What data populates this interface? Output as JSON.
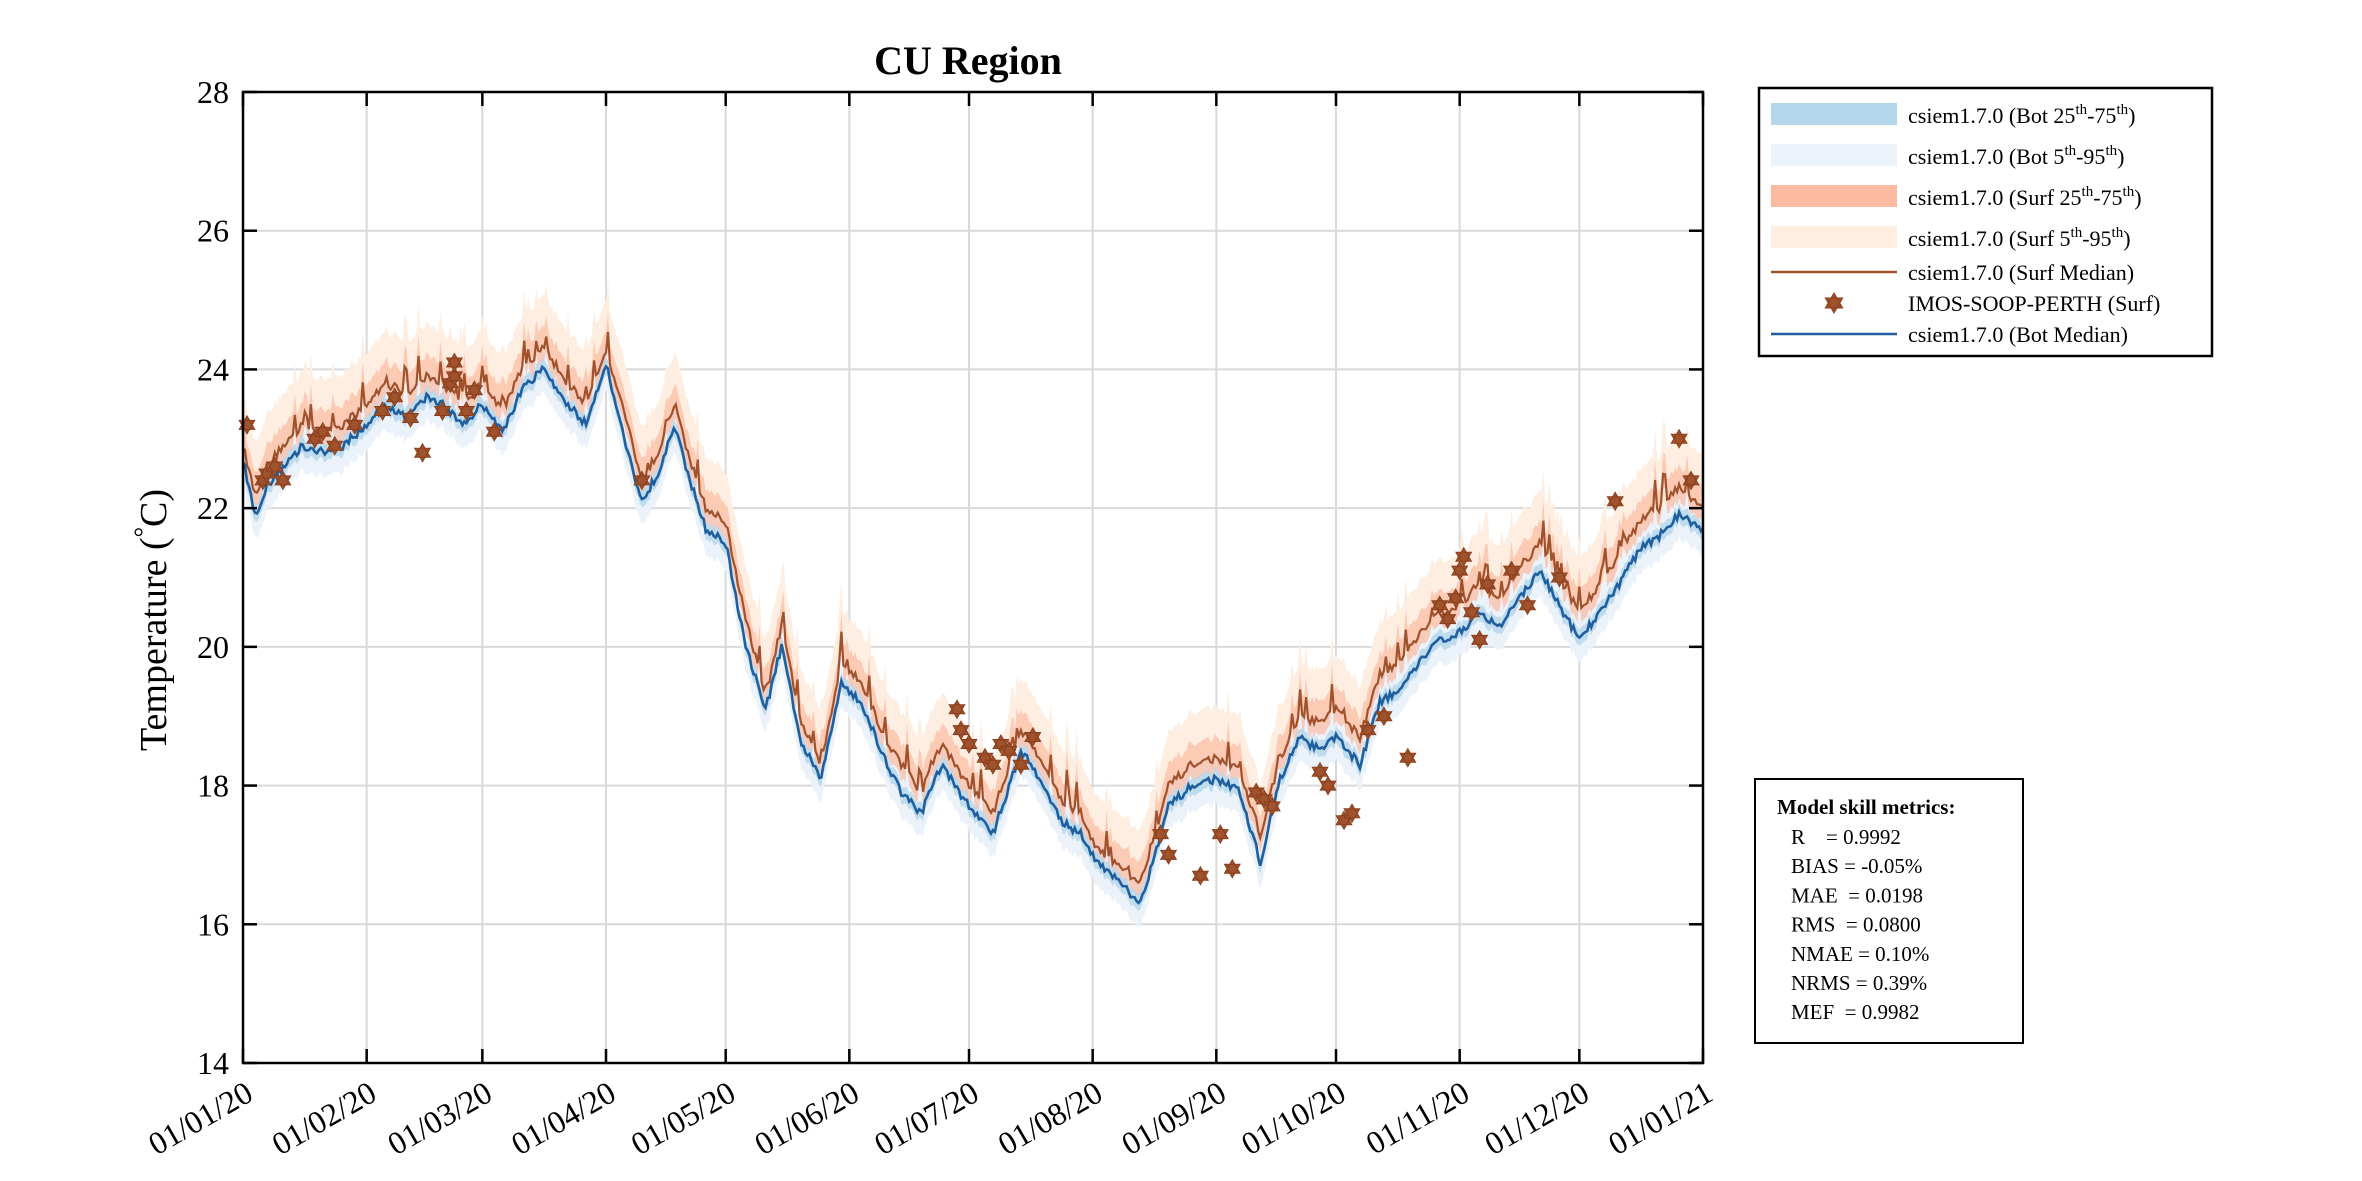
{
  "chart_data": {
    "type": "line",
    "title": "CU Region",
    "xlabel": "",
    "ylabel": "Temperature (",
    "ylabel_degree": "°",
    "ylabel_unit": "C)",
    "ylim": [
      14,
      28
    ],
    "yticks": [
      14,
      16,
      18,
      20,
      22,
      24,
      26,
      28
    ],
    "xlim_days": [
      0,
      366
    ],
    "xticks": [
      {
        "label": "01/01/20",
        "day": 0
      },
      {
        "label": "01/02/20",
        "day": 31
      },
      {
        "label": "01/03/20",
        "day": 60
      },
      {
        "label": "01/04/20",
        "day": 91
      },
      {
        "label": "01/05/20",
        "day": 121
      },
      {
        "label": "01/06/20",
        "day": 152
      },
      {
        "label": "01/07/20",
        "day": 182
      },
      {
        "label": "01/08/20",
        "day": 213
      },
      {
        "label": "01/09/20",
        "day": 244
      },
      {
        "label": "01/10/20",
        "day": 274
      },
      {
        "label": "01/11/20",
        "day": 305
      },
      {
        "label": "01/12/20",
        "day": 335
      },
      {
        "label": "01/01/21",
        "day": 366
      }
    ],
    "grid": true,
    "median_days": [
      0,
      3,
      6,
      10,
      15,
      20,
      25,
      31,
      36,
      41,
      46,
      50,
      55,
      60,
      65,
      70,
      75,
      80,
      86,
      91,
      96,
      100,
      104,
      108,
      112,
      116,
      121,
      126,
      131,
      135,
      140,
      145,
      150,
      155,
      160,
      165,
      170,
      175,
      182,
      188,
      195,
      200,
      205,
      210,
      213,
      218,
      225,
      232,
      238,
      244,
      250,
      255,
      260,
      265,
      270,
      274,
      280,
      285,
      290,
      295,
      300,
      305,
      310,
      315,
      320,
      325,
      330,
      335,
      340,
      345,
      350,
      355,
      360,
      366
    ],
    "bot_median": [
      22.7,
      21.9,
      22.3,
      22.6,
      22.9,
      22.8,
      22.9,
      23.2,
      23.5,
      23.3,
      23.6,
      23.5,
      23.2,
      23.5,
      23.1,
      23.7,
      24.0,
      23.6,
      23.2,
      24.1,
      22.9,
      22.1,
      22.5,
      23.2,
      22.4,
      21.7,
      21.5,
      20.0,
      19.1,
      20.0,
      18.6,
      18.1,
      19.5,
      19.2,
      18.5,
      17.9,
      17.6,
      18.3,
      17.7,
      17.3,
      18.5,
      18.1,
      17.5,
      17.3,
      17.0,
      16.7,
      16.3,
      17.7,
      18.0,
      18.1,
      17.9,
      16.9,
      18.1,
      18.7,
      18.5,
      18.7,
      18.3,
      19.2,
      19.4,
      19.8,
      20.1,
      20.2,
      20.5,
      20.3,
      20.7,
      21.1,
      20.6,
      20.1,
      20.5,
      20.9,
      21.4,
      21.6,
      21.9,
      21.7
    ],
    "surf_median": [
      22.9,
      22.2,
      22.6,
      22.9,
      23.2,
      23.1,
      23.2,
      23.5,
      23.8,
      23.6,
      23.9,
      23.8,
      23.5,
      23.8,
      23.4,
      24.0,
      24.3,
      23.9,
      23.5,
      24.3,
      23.3,
      22.4,
      22.8,
      23.5,
      22.7,
      22.0,
      21.8,
      20.4,
      19.3,
      20.3,
      18.9,
      18.3,
      19.8,
      19.5,
      18.8,
      18.3,
      17.9,
      18.6,
      18.0,
      17.6,
      18.8,
      18.4,
      17.8,
      17.6,
      17.2,
      16.9,
      16.6,
      18.0,
      18.3,
      18.4,
      18.2,
      17.3,
      18.4,
      19.0,
      18.9,
      19.1,
      18.7,
      19.6,
      19.8,
      20.2,
      20.5,
      20.6,
      20.9,
      20.7,
      21.1,
      21.5,
      21.0,
      20.5,
      20.9,
      21.3,
      21.8,
      22.0,
      22.3,
      22.0
    ],
    "obs_days": [
      1,
      5,
      6,
      8,
      10,
      18,
      20,
      23,
      28,
      35,
      38,
      42,
      45,
      50,
      52,
      53,
      53,
      56,
      58,
      63,
      100,
      179,
      180,
      182,
      186,
      188,
      190,
      192,
      195,
      198,
      230,
      232,
      240,
      245,
      248,
      254,
      256,
      258,
      270,
      272,
      276,
      278,
      282,
      286,
      292,
      300,
      302,
      304,
      305,
      306,
      308,
      310,
      312,
      318,
      322,
      330,
      344,
      360,
      363
    ],
    "obs_values": [
      23.2,
      22.4,
      22.5,
      22.6,
      22.4,
      23.0,
      23.1,
      22.9,
      23.2,
      23.4,
      23.6,
      23.3,
      22.8,
      23.4,
      23.8,
      23.9,
      24.1,
      23.4,
      23.7,
      23.1,
      22.4,
      19.1,
      18.8,
      18.6,
      18.4,
      18.3,
      18.6,
      18.5,
      18.3,
      18.7,
      17.3,
      17.0,
      16.7,
      17.3,
      16.8,
      17.9,
      17.8,
      17.7,
      18.2,
      18.0,
      17.5,
      17.6,
      18.8,
      19.0,
      18.4,
      20.6,
      20.4,
      20.7,
      21.1,
      21.3,
      20.5,
      20.1,
      20.9,
      21.1,
      20.6,
      21.0,
      22.1,
      23.0,
      22.4
    ],
    "legend": [
      {
        "label": "csiem1.7.0 (Bot 25",
        "sup1": "th",
        "mid": "-75",
        "sup2": "th",
        "end": ")",
        "kind": "band",
        "color": "#b3d6ea"
      },
      {
        "label": "csiem1.7.0 (Bot 5",
        "sup1": "th",
        "mid": "-95",
        "sup2": "th",
        "end": ")",
        "kind": "band",
        "color": "#ebf2fa"
      },
      {
        "label": "csiem1.7.0 (Surf 25",
        "sup1": "th",
        "mid": "-75",
        "sup2": "th",
        "end": ")",
        "kind": "band",
        "color": "#fcbba1"
      },
      {
        "label": "csiem1.7.0 (Surf 5",
        "sup1": "th",
        "mid": "-95",
        "sup2": "th",
        "end": ")",
        "kind": "band",
        "color": "#fdeee1"
      },
      {
        "label": "csiem1.7.0 (Surf Median)",
        "kind": "line",
        "color": "#a0522d"
      },
      {
        "label": "IMOS-SOOP-PERTH (Surf)",
        "kind": "marker",
        "color": "#a0522d"
      },
      {
        "label": "csiem1.7.0 (Bot Median)",
        "kind": "line",
        "color": "#1f5fa0"
      }
    ],
    "legend_placement": "outside-top-right",
    "colors": {
      "surf": "#a0522d",
      "bot": "#1f5fa0",
      "bot_band": "#b3d6ea",
      "bot_band_outer": "#ebf2fa",
      "surf_band": "#fcbba1",
      "surf_band_outer": "#fdeee1"
    }
  },
  "metrics": {
    "title": "Model skill metrics:",
    "lines": [
      "R    = 0.9992",
      "BIAS = -0.05%",
      "MAE  = 0.0198",
      "RMS  = 0.0800",
      "NMAE = 0.10%",
      "NRMS = 0.39%",
      "MEF  = 0.9982"
    ]
  }
}
